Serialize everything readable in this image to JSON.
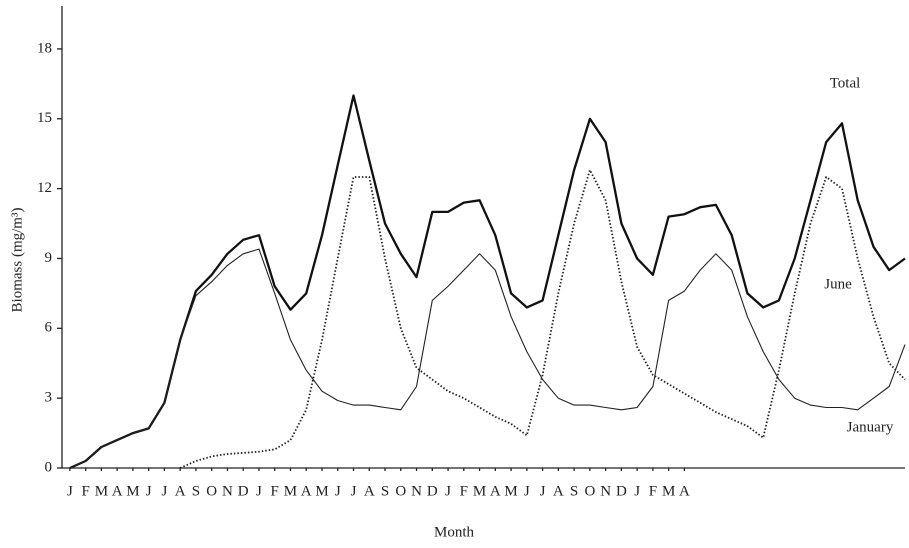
{
  "chart_data": {
    "type": "line",
    "x_label": "Month",
    "y_label": "Biomass (mg/m³)",
    "x": [
      0,
      1,
      2,
      3,
      4,
      5,
      6,
      7,
      8,
      9,
      10,
      11,
      12,
      13,
      14,
      15,
      16,
      17,
      18,
      19,
      20,
      21,
      22,
      23,
      24,
      25,
      26,
      27,
      28,
      29,
      30,
      31,
      32,
      33,
      34,
      35,
      36,
      37,
      38,
      39,
      40,
      41,
      42,
      43,
      44,
      45,
      46,
      47,
      48,
      49,
      50,
      51,
      52,
      53
    ],
    "xlim": [
      -0.5,
      53
    ],
    "xticks": [
      {
        "value": 0,
        "label": "J"
      },
      {
        "value": 1,
        "label": "F"
      },
      {
        "value": 2,
        "label": "M"
      },
      {
        "value": 3,
        "label": "A"
      },
      {
        "value": 4,
        "label": "M"
      },
      {
        "value": 5,
        "label": "J"
      },
      {
        "value": 6,
        "label": "J"
      },
      {
        "value": 7,
        "label": "A"
      },
      {
        "value": 8,
        "label": "S"
      },
      {
        "value": 9,
        "label": "O"
      },
      {
        "value": 10,
        "label": "N"
      },
      {
        "value": 11,
        "label": "D"
      },
      {
        "value": 12,
        "label": "J"
      },
      {
        "value": 13,
        "label": "F"
      },
      {
        "value": 14,
        "label": "M"
      },
      {
        "value": 15,
        "label": "A"
      },
      {
        "value": 16,
        "label": "M"
      },
      {
        "value": 17,
        "label": "J"
      },
      {
        "value": 18,
        "label": "J"
      },
      {
        "value": 19,
        "label": "A"
      },
      {
        "value": 20,
        "label": "S"
      },
      {
        "value": 21,
        "label": "O"
      },
      {
        "value": 22,
        "label": "N"
      },
      {
        "value": 23,
        "label": "D"
      },
      {
        "value": 24,
        "label": "J"
      },
      {
        "value": 25,
        "label": "F"
      },
      {
        "value": 26,
        "label": "M"
      },
      {
        "value": 27,
        "label": "A"
      },
      {
        "value": 28,
        "label": "M"
      },
      {
        "value": 29,
        "label": "J"
      },
      {
        "value": 30,
        "label": "J"
      },
      {
        "value": 31,
        "label": "A"
      },
      {
        "value": 32,
        "label": "S"
      },
      {
        "value": 33,
        "label": "O"
      },
      {
        "value": 34,
        "label": "N"
      },
      {
        "value": 35,
        "label": "D"
      },
      {
        "value": 36,
        "label": "J"
      },
      {
        "value": 37,
        "label": "F"
      },
      {
        "value": 38,
        "label": "M"
      },
      {
        "value": 39,
        "label": "A"
      }
    ],
    "ylim": [
      0,
      19.5
    ],
    "yticks": [
      0,
      3,
      6,
      9,
      12,
      15,
      18
    ],
    "grid": false,
    "series": [
      {
        "name": "Total",
        "color": "#111111",
        "style": "solid",
        "values": [
          0,
          0.3,
          0.9,
          1.2,
          1.5,
          1.7,
          2.8,
          5.5,
          7.6,
          8.3,
          9.2,
          9.8,
          10.0,
          7.8,
          6.8,
          7.5,
          10,
          13,
          16,
          13.2,
          10.5,
          9.2,
          8.2,
          11,
          11,
          11.4,
          11.5,
          10,
          7.5,
          6.9,
          7.2,
          10,
          12.8,
          15,
          14,
          10.5,
          9,
          8.3,
          10.8,
          10.9,
          11.2,
          11.3,
          10,
          7.5,
          6.9,
          7.2,
          9,
          11.5,
          14,
          14.8,
          11.5,
          9.5,
          8.5,
          9
        ]
      },
      {
        "name": "June",
        "color": "#222222",
        "style": "dotted",
        "values": [
          null,
          null,
          null,
          null,
          null,
          null,
          null,
          0,
          0.3,
          0.5,
          0.6,
          0.65,
          0.7,
          0.8,
          1.2,
          2.5,
          5.5,
          9,
          12.5,
          12.5,
          9,
          6,
          4.3,
          3.8,
          3.3,
          3.0,
          2.6,
          2.2,
          1.9,
          1.4,
          4,
          7.5,
          10.5,
          12.8,
          11.5,
          8,
          5.2,
          4,
          3.6,
          3.2,
          2.8,
          2.4,
          2.1,
          1.8,
          1.3,
          4.2,
          7.5,
          10.5,
          12.5,
          12,
          9,
          6.5,
          4.5,
          3.8
        ]
      },
      {
        "name": "January",
        "color": "#222222",
        "style": "thin",
        "values": [
          0,
          0.3,
          0.9,
          1.2,
          1.5,
          1.7,
          2.8,
          5.5,
          7.4,
          8,
          8.7,
          9.2,
          9.4,
          7.5,
          5.5,
          4.2,
          3.3,
          2.9,
          2.7,
          2.7,
          2.6,
          2.5,
          3.5,
          7.2,
          7.8,
          8.5,
          9.2,
          8.5,
          6.5,
          5,
          3.8,
          3.0,
          2.7,
          2.7,
          2.6,
          2.5,
          2.6,
          3.5,
          7.2,
          7.6,
          8.5,
          9.2,
          8.5,
          6.5,
          5,
          3.8,
          3,
          2.7,
          2.6,
          2.6,
          2.5,
          3,
          3.5,
          5.3
        ]
      }
    ]
  }
}
